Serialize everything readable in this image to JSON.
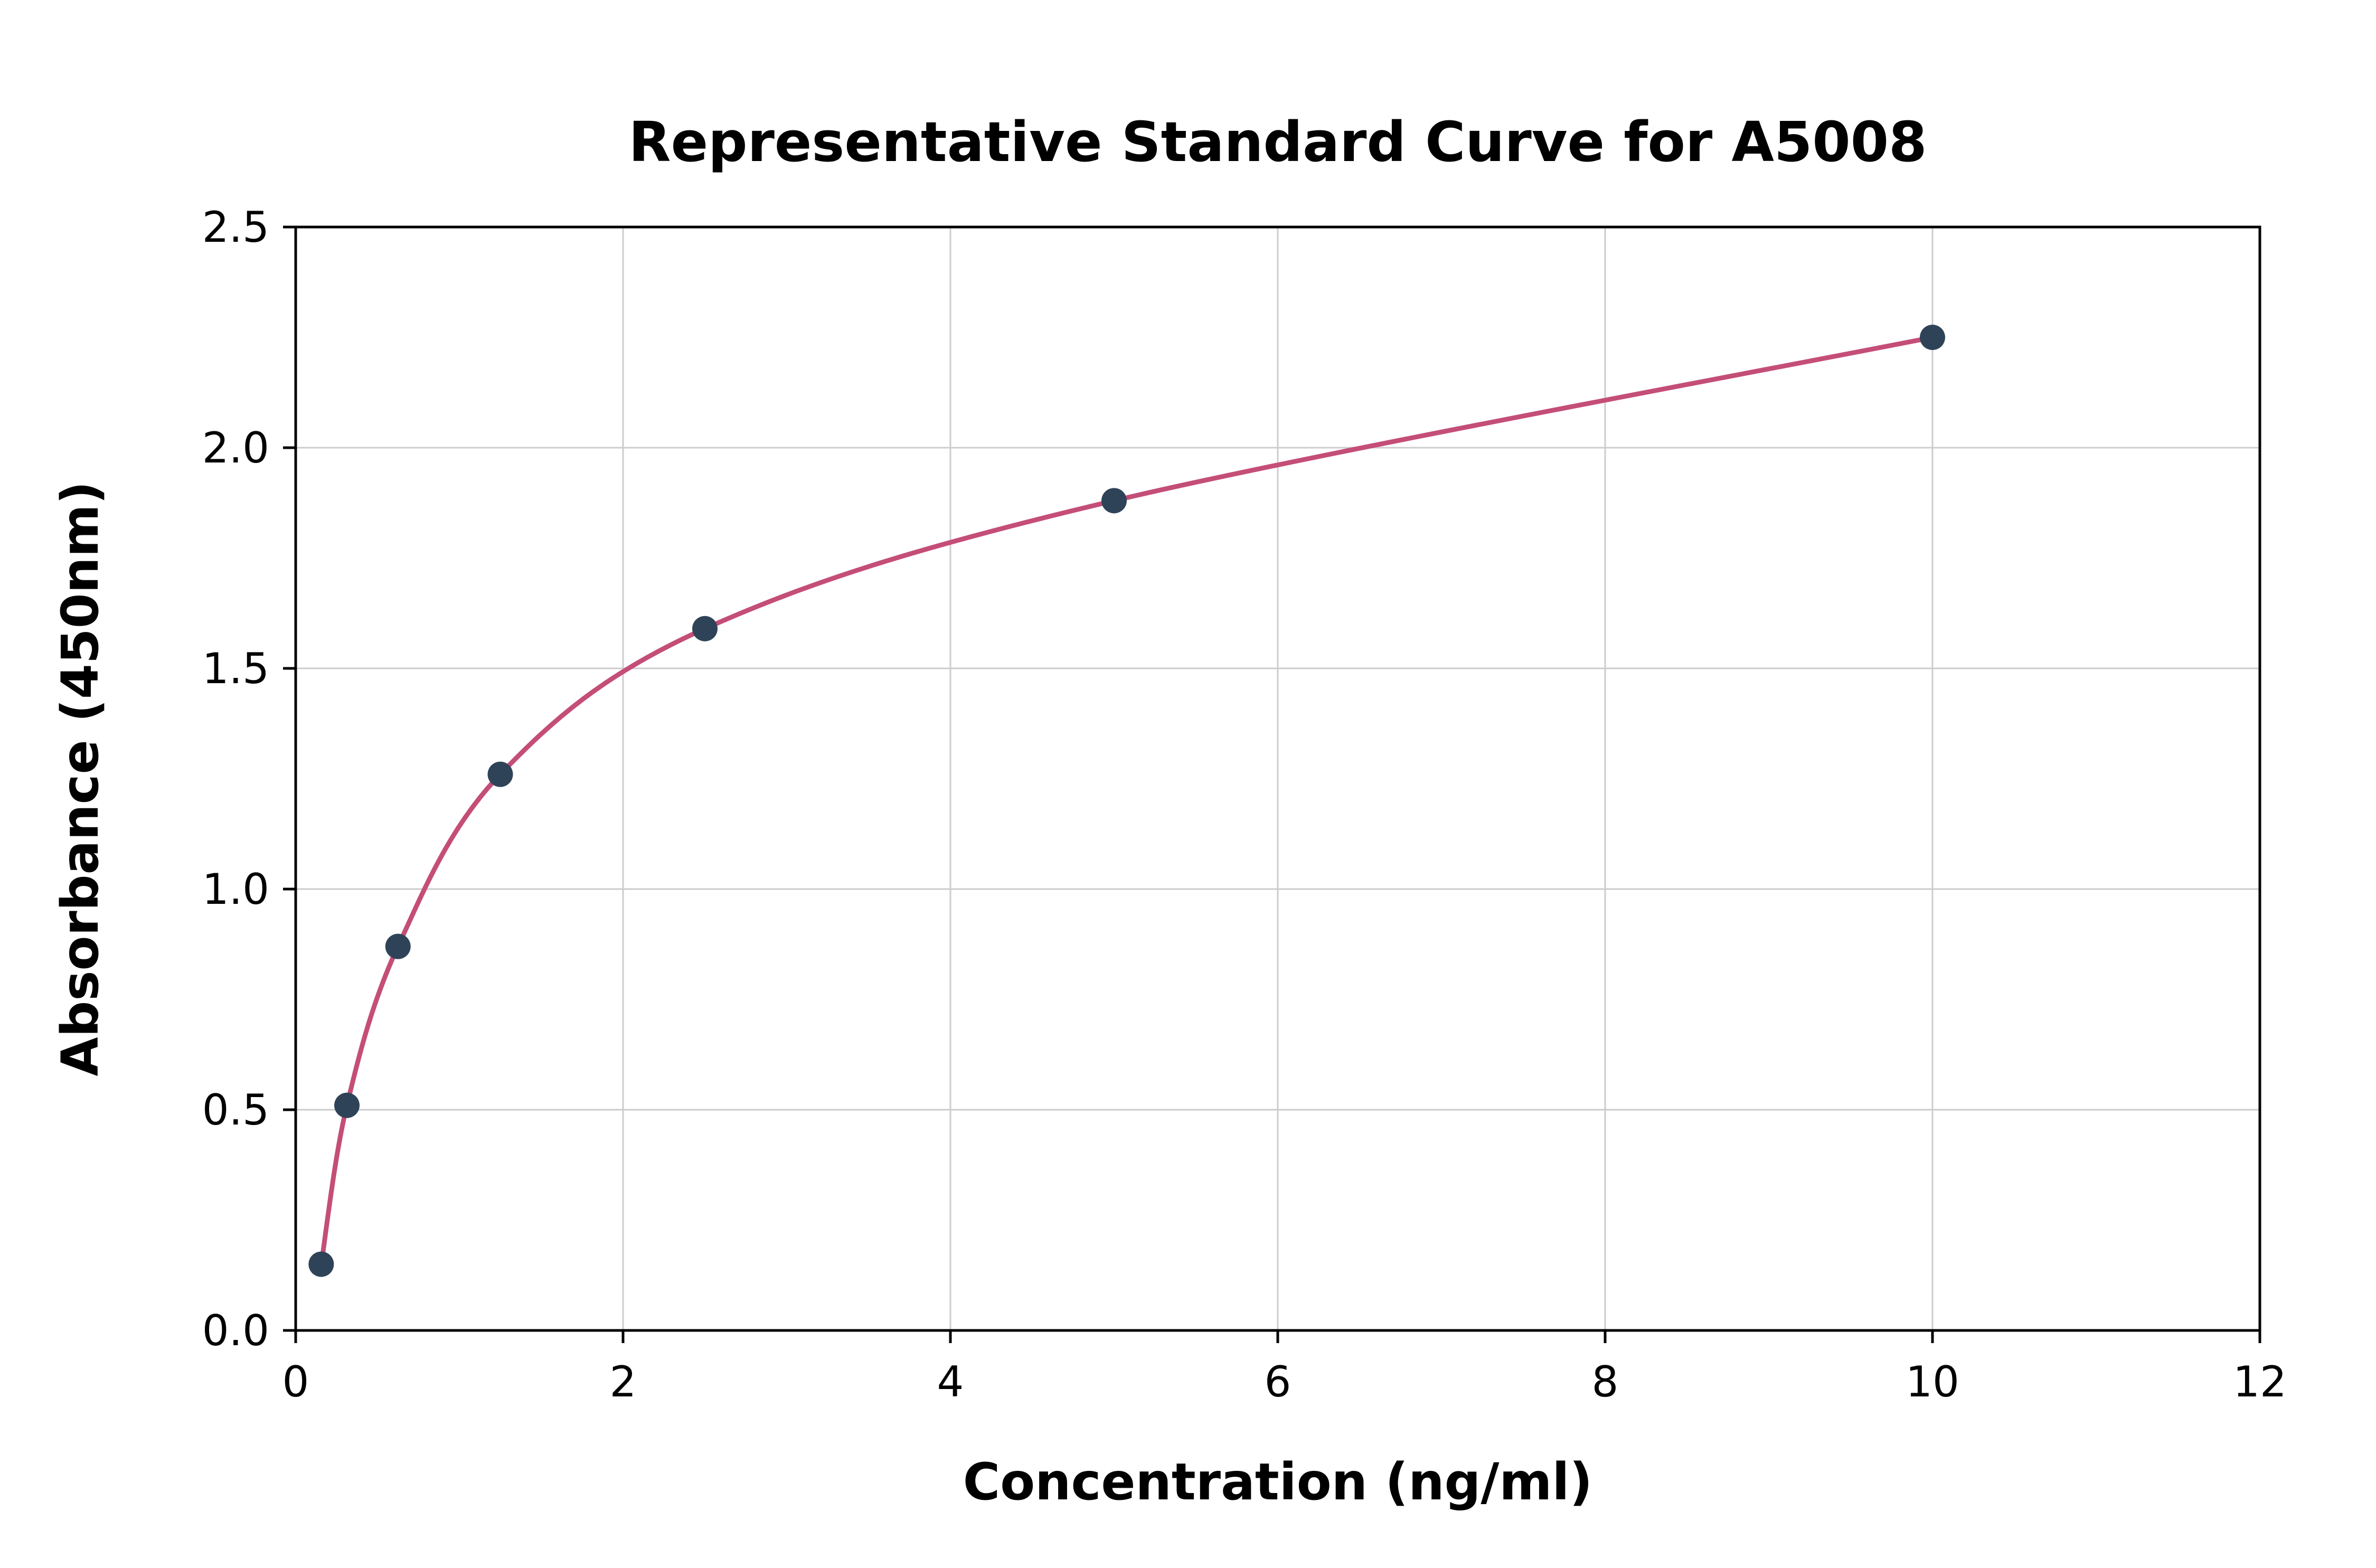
{
  "page": {
    "background": "#ffffff"
  },
  "chart_data": {
    "type": "scatter",
    "title": "Representative Standard Curve for A5008",
    "xlabel": "Concentration (ng/ml)",
    "ylabel": "Absorbance (450nm)",
    "xlim": [
      0,
      12
    ],
    "ylim": [
      0,
      2.5
    ],
    "x_ticks": [
      0,
      2,
      4,
      6,
      8,
      10,
      12
    ],
    "x_tick_labels": [
      "0",
      "2",
      "4",
      "6",
      "8",
      "10",
      "12"
    ],
    "y_ticks": [
      0.0,
      0.5,
      1.0,
      1.5,
      2.0,
      2.5
    ],
    "y_tick_labels": [
      "0.0",
      "0.5",
      "1.0",
      "1.5",
      "2.0",
      "2.5"
    ],
    "grid": true,
    "legend": "none",
    "points": [
      {
        "x": 0.156,
        "y": 0.15
      },
      {
        "x": 0.313,
        "y": 0.51
      },
      {
        "x": 0.625,
        "y": 0.87
      },
      {
        "x": 1.25,
        "y": 1.26
      },
      {
        "x": 2.5,
        "y": 1.59
      },
      {
        "x": 5,
        "y": 1.88
      },
      {
        "x": 10,
        "y": 2.25
      }
    ],
    "curve": "smooth fit through points",
    "colors": {
      "curve": "#c44e78",
      "points": "#2f4358",
      "grid": "#cccccc",
      "axis": "#000000",
      "background": "#ffffff"
    }
  }
}
